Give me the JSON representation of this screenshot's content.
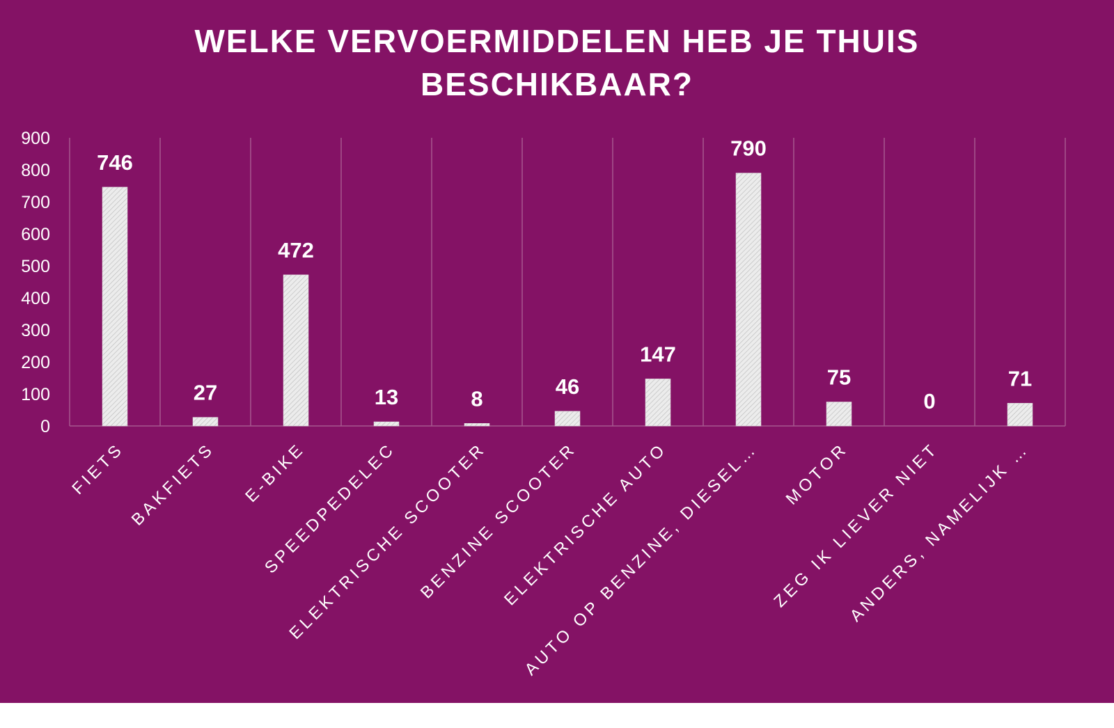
{
  "chart_data": {
    "type": "bar",
    "title": "WELKE VERVOERMIDDELEN HEB JE THUIS BESCHIKBAAR?",
    "title_lines": [
      "WELKE VERVOERMIDDELEN HEB JE THUIS",
      "BESCHIKBAAR?"
    ],
    "categories": [
      "FIETS",
      "BAKFIETS",
      "E-BIKE",
      "SPEEDPEDELEC",
      "ELEKTRISCHE SCOOTER",
      "BENZINE SCOOTER",
      "ELEKTRISCHE AUTO",
      "AUTO OP BENZINE, DIESEL…",
      "MOTOR",
      "ZEG IK LIEVER NIET",
      "ANDERS, NAMELIJK …"
    ],
    "values": [
      746,
      27,
      472,
      13,
      8,
      46,
      147,
      790,
      75,
      0,
      71
    ],
    "yticks": [
      0,
      100,
      200,
      300,
      400,
      500,
      600,
      700,
      800,
      900
    ],
    "ylim": [
      0,
      900
    ],
    "xlabel": "",
    "ylabel": "",
    "data_labels": true,
    "grid": "vertical separators",
    "colors": {
      "background": "#841265",
      "bar_fill": "#ececec",
      "bar_hatch": "#b9b9b9",
      "grid": "#a7588f",
      "text": "#ffffff"
    }
  }
}
